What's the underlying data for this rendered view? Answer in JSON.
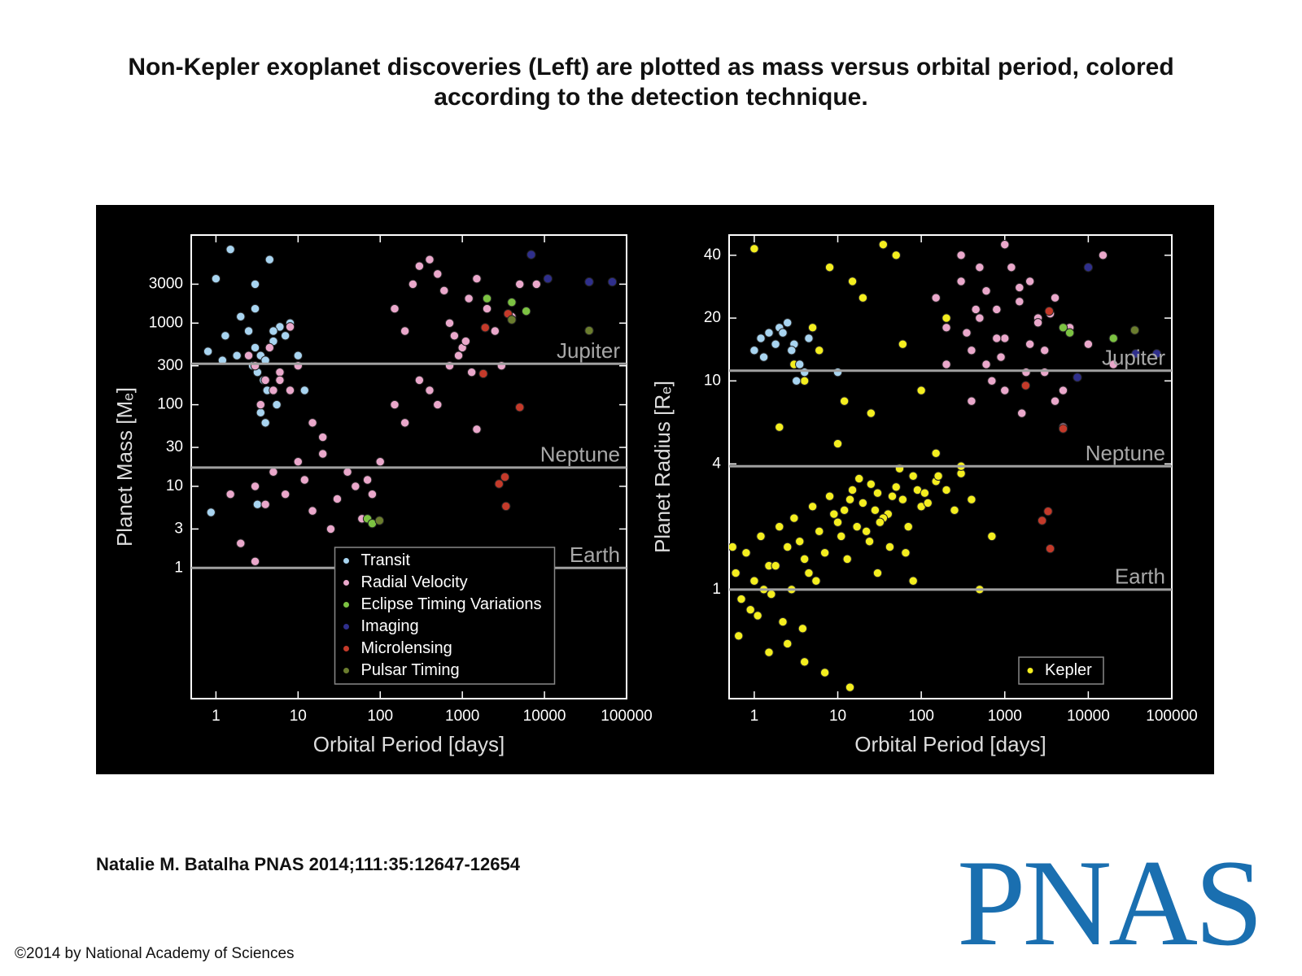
{
  "title": "Non-Kepler exoplanet discoveries (Left) are plotted as mass versus orbital period, colored according to the detection technique.",
  "citation": "Natalie M. Batalha PNAS 2014;111:35:12647-12654",
  "copyright": "©2014 by National Academy of Sciences",
  "logo": "PNAS",
  "chart_data": [
    {
      "type": "scatter",
      "x_label": "Orbital Period [days]",
      "y_label": "Planet Mass [Mₑ]",
      "x_log": true,
      "y_log": true,
      "xlim": [
        0.5,
        100000
      ],
      "ylim": [
        0.025,
        12000
      ],
      "xticks": [
        1,
        10,
        100,
        1000,
        10000,
        100000
      ],
      "yticks": [
        1,
        3,
        10,
        30,
        100,
        300,
        1000,
        3000
      ],
      "legend": "lower center",
      "reference_lines": [
        {
          "value": 318,
          "label": "Jupiter"
        },
        {
          "value": 17,
          "label": "Neptune"
        },
        {
          "value": 1,
          "label": "Earth"
        }
      ],
      "series": [
        {
          "name": "Transit",
          "color": "#a8d4f0",
          "x": [
            1.5,
            4.5,
            1,
            3,
            2,
            2.5,
            3,
            3.5,
            4,
            5,
            6,
            0.8,
            1.2,
            1.8,
            2.8,
            3.2,
            3.8,
            4.2,
            5.5,
            7,
            8,
            10,
            12,
            3,
            3.5,
            4,
            5,
            1.3,
            0.87,
            3.2
          ],
          "values": [
            8000,
            6000,
            3500,
            3000,
            1200,
            800,
            500,
            400,
            350,
            600,
            900,
            450,
            350,
            400,
            300,
            250,
            200,
            150,
            100,
            700,
            1000,
            400,
            150,
            1500,
            80,
            60,
            800,
            700,
            4.8,
            6
          ]
        },
        {
          "name": "Radial Velocity",
          "color": "#eaa8cb",
          "x": [
            2.5,
            3,
            4,
            5,
            3.5,
            4.5,
            6,
            8,
            3,
            4,
            5,
            7,
            10,
            12,
            15,
            20,
            25,
            30,
            40,
            50,
            60,
            70,
            80,
            100,
            6,
            8,
            10,
            15,
            20,
            3,
            2,
            1.5,
            150,
            200,
            250,
            300,
            400,
            500,
            600,
            700,
            800,
            1000,
            1200,
            1500,
            2000,
            2500,
            3000,
            4000,
            300,
            400,
            500,
            700,
            900,
            1100,
            1300,
            200,
            150,
            5000,
            8000,
            1500
          ],
          "values": [
            400,
            300,
            200,
            150,
            100,
            500,
            250,
            900,
            10,
            6,
            15,
            8,
            20,
            12,
            5,
            25,
            3,
            7,
            15,
            10,
            4,
            12,
            8,
            20,
            200,
            150,
            300,
            60,
            40,
            1.2,
            2,
            8,
            1500,
            800,
            3000,
            5000,
            6000,
            4000,
            2500,
            1000,
            700,
            500,
            2000,
            3500,
            1500,
            800,
            300,
            1200,
            200,
            150,
            100,
            300,
            400,
            600,
            250,
            60,
            100,
            3000,
            3000,
            50
          ]
        },
        {
          "name": "Eclipse Timing Variations",
          "color": "#7cc242",
          "x": [
            2000,
            4000,
            6000,
            70,
            80
          ],
          "values": [
            2000,
            1800,
            1400,
            4,
            3.5
          ]
        },
        {
          "name": "Imaging",
          "color": "#2f2f8c",
          "x": [
            6900,
            35000,
            67000,
            11000
          ],
          "values": [
            6900,
            3200,
            3200,
            3500
          ]
        },
        {
          "name": "Microlensing",
          "color": "#c43a2a",
          "x": [
            1900,
            3600,
            1800,
            5000,
            2800,
            3300,
            3400
          ],
          "values": [
            880,
            1300,
            240,
            93,
            10.7,
            13,
            5.7
          ]
        },
        {
          "name": "Pulsar Timing",
          "color": "#6b7d2e",
          "x": [
            35000,
            98,
            4000
          ],
          "values": [
            810,
            3.8,
            1100
          ]
        }
      ]
    },
    {
      "type": "scatter",
      "x_label": "Orbital Period [days]",
      "y_label": "Planet Radius [Rₑ]",
      "x_log": true,
      "y_log": true,
      "xlim": [
        0.5,
        100000
      ],
      "ylim": [
        0.3,
        50
      ],
      "xticks": [
        1,
        10,
        100,
        1000,
        10000,
        100000
      ],
      "yticks": [
        1,
        4,
        10,
        20,
        40
      ],
      "legend": "lower right",
      "reference_lines": [
        {
          "value": 11.2,
          "label": "Jupiter"
        },
        {
          "value": 3.9,
          "label": "Neptune"
        },
        {
          "value": 1,
          "label": "Earth"
        }
      ],
      "series": [
        {
          "name": "Kepler",
          "color": "#f4ee1f",
          "x": [
            0.6,
            0.7,
            0.8,
            1,
            1.2,
            1.5,
            2,
            2.5,
            3,
            4,
            5,
            6,
            8,
            10,
            12,
            15,
            20,
            25,
            30,
            40,
            50,
            60,
            80,
            100,
            150,
            200,
            300,
            0.9,
            1.3,
            1.8,
            2.2,
            3.5,
            4.5,
            7,
            9,
            11,
            14,
            18,
            22,
            28,
            35,
            45,
            55,
            70,
            90,
            120,
            0.55,
            0.65,
            1.1,
            1.6,
            2.8,
            3.8,
            5.5,
            13,
            17,
            24,
            32,
            42,
            65,
            110,
            160,
            250,
            400,
            3,
            5,
            8,
            12,
            20,
            35,
            60,
            100,
            200,
            2,
            4,
            6,
            10,
            15,
            25,
            50,
            1.5,
            2.5,
            4,
            7,
            30,
            80,
            150,
            300,
            500,
            1,
            700,
            14
          ],
          "values": [
            1.2,
            0.9,
            1.5,
            1.1,
            1.8,
            1.3,
            2,
            1.6,
            2.2,
            1.4,
            2.5,
            1.9,
            2.8,
            2.1,
            2.4,
            3,
            2.6,
            3.2,
            2.9,
            2.3,
            3.1,
            2.7,
            3.5,
            2.5,
            3.3,
            3,
            3.6,
            0.8,
            1,
            1.3,
            0.7,
            1.7,
            1.2,
            1.5,
            2.3,
            1.8,
            2.7,
            3.4,
            1.9,
            2.4,
            2.2,
            2.8,
            3.8,
            2,
            3,
            2.6,
            1.6,
            0.6,
            0.75,
            0.95,
            1,
            0.65,
            1.1,
            1.4,
            2,
            1.7,
            2.1,
            1.6,
            1.5,
            2.9,
            3.5,
            2.4,
            2.7,
            12,
            18,
            35,
            8,
            25,
            45,
            15,
            9,
            20,
            6,
            10,
            14,
            5,
            30,
            7,
            40,
            0.5,
            0.55,
            0.45,
            0.4,
            1.2,
            1.1,
            4.5,
            3.9,
            1,
            43,
            1.8,
            0.34
          ]
        },
        {
          "color": "#a8d4f0",
          "x": [
            1,
            1.2,
            1.5,
            2,
            2.5,
            3,
            3.5,
            4,
            1.3,
            1.8,
            2.2,
            2.8,
            3.2,
            4.5,
            10
          ],
          "values": [
            14,
            16,
            17,
            18,
            19,
            15,
            12,
            11,
            13,
            15,
            17,
            14,
            10,
            16,
            11
          ]
        },
        {
          "color": "#eaa8cb",
          "x": [
            150,
            200,
            300,
            400,
            500,
            600,
            800,
            1000,
            1200,
            1500,
            2000,
            2500,
            3000,
            4000,
            5000,
            6000,
            300,
            500,
            700,
            1000,
            1500,
            2000,
            3000,
            4000,
            200,
            400,
            800,
            1600,
            2500,
            5000,
            10000,
            20000,
            1000,
            600,
            350,
            450,
            900,
            1800,
            3500,
            15000
          ],
          "values": [
            25,
            18,
            30,
            14,
            20,
            12,
            22,
            16,
            35,
            28,
            15,
            20,
            11,
            25,
            9,
            18,
            40,
            35,
            10,
            9,
            24,
            30,
            14,
            8,
            12,
            8,
            16,
            7,
            19,
            6,
            15,
            12,
            45,
            27,
            17,
            22,
            13,
            11,
            21,
            40
          ]
        },
        {
          "color": "#7cc242",
          "x": [
            5000,
            6000,
            20000
          ],
          "values": [
            18,
            17,
            16
          ]
        },
        {
          "color": "#2f2f8c",
          "x": [
            10000,
            37000,
            66000,
            7400
          ],
          "values": [
            35,
            13.5,
            13.5,
            10.4
          ]
        },
        {
          "color": "#c43a2a",
          "x": [
            3400,
            1780,
            5000,
            3300,
            2800,
            3500
          ],
          "values": [
            21.6,
            9.5,
            5.9,
            2.37,
            2.14,
            1.57
          ]
        },
        {
          "color": "#6b7d2e",
          "x": [
            36000
          ],
          "values": [
            17.5
          ]
        }
      ]
    }
  ]
}
